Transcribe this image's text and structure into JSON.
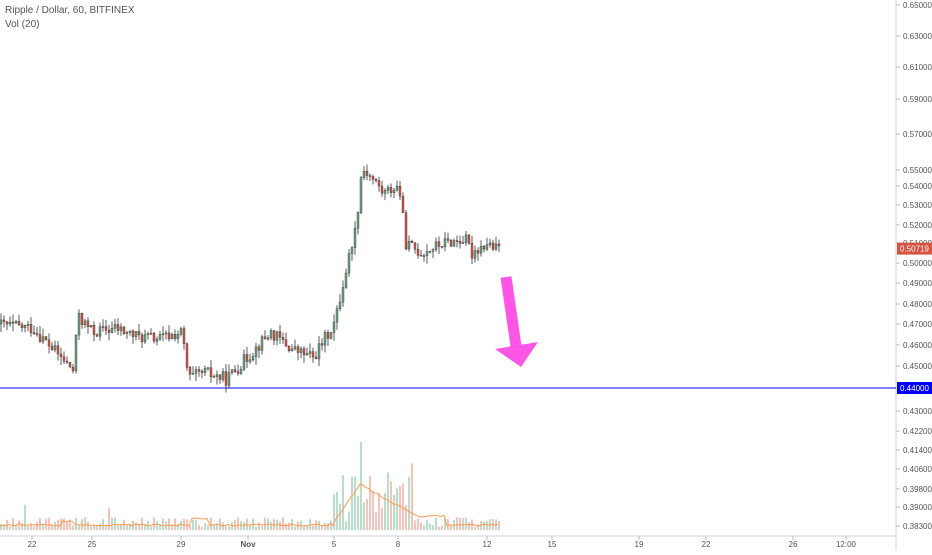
{
  "header": {
    "title": "Ripple / Dollar, 60, BITFINEX",
    "volume_label": "Vol (20)"
  },
  "colors": {
    "up": "#6ba583",
    "down": "#d75442",
    "candle_outline": "#333333",
    "support_line": "#0000ff",
    "arrow": "#ff55e6",
    "volume_ma": "#ff9b4f",
    "current_price_badge": "#d75442",
    "support_price_badge": "#0000ff"
  },
  "chart_data": {
    "type": "candlestick",
    "symbol": "Ripple / Dollar",
    "interval": "60",
    "exchange": "BITFINEX",
    "y_ticks": [
      "0.65000",
      "0.63000",
      "0.61000",
      "0.59000",
      "0.57000",
      "0.55000",
      "0.54000",
      "0.53000",
      "0.52000",
      "0.51000",
      "0.50000",
      "0.49000",
      "0.48000",
      "0.47000",
      "0.46000",
      "0.45000",
      "0.44000",
      "0.43000",
      "0.42200",
      "0.41400",
      "0.40600",
      "0.39800",
      "0.39000",
      "0.38300"
    ],
    "x_ticks": [
      "22",
      "25",
      "29",
      "Nov",
      "5",
      "8",
      "12",
      "15",
      "19",
      "22",
      "26",
      "12:00"
    ],
    "current_price": "0.50719",
    "support_level": "0.44000",
    "price_path": [
      {
        "x": "Oct 21",
        "y": 0.47
      },
      {
        "x": "Oct 22",
        "y": 0.468
      },
      {
        "x": "Oct 23",
        "y": 0.458
      },
      {
        "x": "Oct 24",
        "y": 0.448
      },
      {
        "x": "Oct 24",
        "y": 0.476
      },
      {
        "x": "Oct 25",
        "y": 0.466
      },
      {
        "x": "Oct 26",
        "y": 0.468
      },
      {
        "x": "Oct 27",
        "y": 0.464
      },
      {
        "x": "Oct 28",
        "y": 0.463
      },
      {
        "x": "Oct 29",
        "y": 0.466
      },
      {
        "x": "Oct 29",
        "y": 0.443
      },
      {
        "x": "Oct 30",
        "y": 0.447
      },
      {
        "x": "Oct 31",
        "y": 0.444
      },
      {
        "x": "Nov 1",
        "y": 0.455
      },
      {
        "x": "Nov 2",
        "y": 0.466
      },
      {
        "x": "Nov 3",
        "y": 0.458
      },
      {
        "x": "Nov 4",
        "y": 0.454
      },
      {
        "x": "Nov 5",
        "y": 0.471
      },
      {
        "x": "Nov 6",
        "y": 0.52
      },
      {
        "x": "Nov 6",
        "y": 0.555
      },
      {
        "x": "Nov 7",
        "y": 0.541
      },
      {
        "x": "Nov 7",
        "y": 0.535
      },
      {
        "x": "Nov 8",
        "y": 0.54
      },
      {
        "x": "Nov 8",
        "y": 0.512
      },
      {
        "x": "Nov 9",
        "y": 0.505
      },
      {
        "x": "Nov 10",
        "y": 0.51
      },
      {
        "x": "Nov 11",
        "y": 0.512
      },
      {
        "x": "Nov 11",
        "y": 0.504
      },
      {
        "x": "Nov 12",
        "y": 0.51
      },
      {
        "x": "Nov 12",
        "y": 0.507
      }
    ],
    "volume": {
      "base_level": 0.383,
      "baseline_relative": "low",
      "notable_spikes": [
        "Oct 23",
        "Oct 29",
        "Nov 1",
        "Nov 6",
        "Nov 7"
      ]
    },
    "annotations": {
      "horizontal_line": "0.44000",
      "arrow_direction": "down"
    },
    "grid": false
  }
}
